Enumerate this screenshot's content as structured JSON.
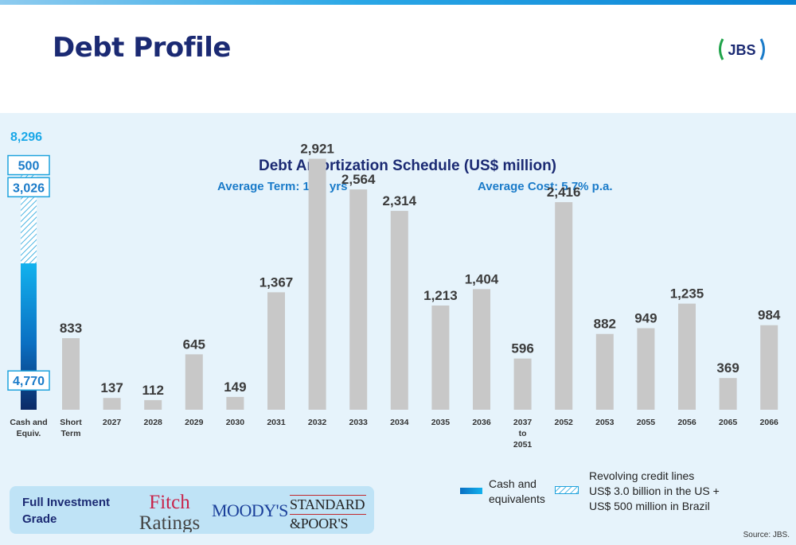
{
  "page": {
    "title": "Debt Profile",
    "logo": "JBS",
    "source": "Source: JBS."
  },
  "header": {
    "chart_title": "Debt Amortization Schedule (US$ million)",
    "avg_term": "Average Term: 14.8 yrs",
    "avg_cost": "Average Cost: 5.7% p.a."
  },
  "ratings": {
    "grade": "Full Investment Grade",
    "fitch_1": "Fitch",
    "fitch_2": "Ratings",
    "moodys": "MOODY'S",
    "sp_1": "STANDARD",
    "sp_2": "&POOR'S"
  },
  "legend": {
    "cash": [
      "Cash and",
      "equivalents"
    ],
    "revolving": [
      "Revolving credit lines",
      "US$ 3.0 billion in the US +",
      "US$ 500 million in Brazil"
    ]
  },
  "colors": {
    "bar": "#c8c8c8",
    "cash_top": "#12b2ee",
    "cash_bottom": "#0b2a66",
    "hatch": "#1fa3dd",
    "label": "#3b3b3b",
    "title": "#1b2a73",
    "accent": "#1a7bc9"
  },
  "chart_data": {
    "type": "bar",
    "categories": [
      "Short Term",
      "2027",
      "2028",
      "2029",
      "2030",
      "2031",
      "2032",
      "2033",
      "2034",
      "2035",
      "2036",
      "2037 to 2051",
      "2052",
      "2053",
      "2055",
      "2056",
      "2065",
      "2066"
    ],
    "values": [
      833,
      137,
      112,
      645,
      149,
      1367,
      2921,
      2564,
      2314,
      1213,
      1404,
      596,
      2416,
      882,
      949,
      1235,
      369,
      984
    ],
    "value_labels": [
      "833",
      "137",
      "112",
      "645",
      "149",
      "1,367",
      "2,921",
      "2,564",
      "2,314",
      "1,213",
      "1,404",
      "596",
      "2,416",
      "882",
      "949",
      "1,235",
      "369",
      "984"
    ],
    "cash": {
      "label": "Cash and Equiv.",
      "total": 8296,
      "total_label": "8,296",
      "segments": [
        {
          "name": "Cash and equivalents",
          "value": 4770,
          "label": "4,770"
        },
        {
          "name": "Revolving credit lines US",
          "value": 3026,
          "label": "3,026"
        },
        {
          "name": "Revolving credit lines Brazil",
          "value": 500,
          "label": "500"
        }
      ]
    }
  }
}
